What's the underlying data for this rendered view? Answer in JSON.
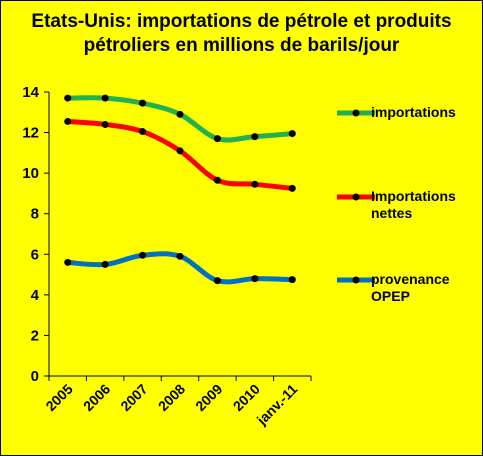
{
  "title_line1": "Etats-Unis: importations de pétrole et produits",
  "title_line2": "pétroliers en millions de barils/jour",
  "chart_data": {
    "type": "line",
    "categories": [
      "2005",
      "2006",
      "2007",
      "2008",
      "2009",
      "2010",
      "janv.-11"
    ],
    "ylim": [
      0,
      14
    ],
    "yticks": [
      0,
      2,
      4,
      6,
      8,
      10,
      12,
      14
    ],
    "grid": false,
    "legend_position": "right",
    "series": [
      {
        "name": "importations",
        "color": "#22b14c",
        "values": [
          13.7,
          13.7,
          13.45,
          12.9,
          11.7,
          11.8,
          11.95
        ]
      },
      {
        "name": "Importations nettes",
        "color": "#ff0000",
        "values": [
          12.55,
          12.4,
          12.05,
          11.1,
          9.65,
          9.45,
          9.25
        ]
      },
      {
        "name": "provenance OPEP",
        "color": "#0070c0",
        "values": [
          5.6,
          5.5,
          5.95,
          5.9,
          4.7,
          4.8,
          4.75
        ]
      }
    ]
  }
}
